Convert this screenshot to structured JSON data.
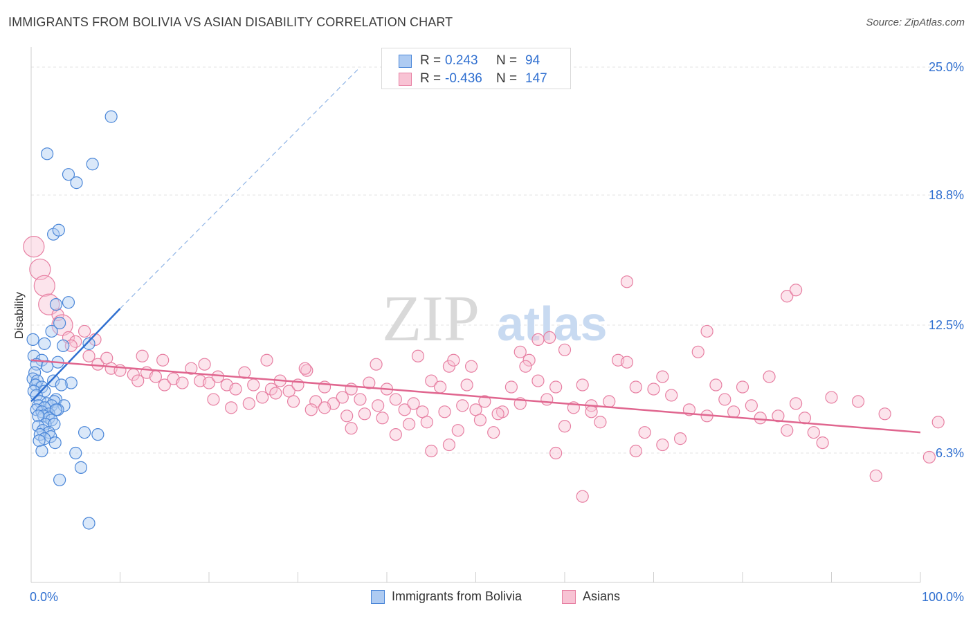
{
  "title": "IMMIGRANTS FROM BOLIVIA VS ASIAN DISABILITY CORRELATION CHART",
  "source": "Source: ZipAtlas.com",
  "watermark": {
    "zip": "ZIP",
    "atlas": "atlas"
  },
  "legend": {
    "r_label": "R =",
    "n_label": "N =",
    "series": [
      {
        "name": "Immigrants from Bolivia",
        "r": "0.243",
        "n": "94",
        "fill": "#aecbf2",
        "stroke": "#4a86d8",
        "text_color": "#2f6fd0"
      },
      {
        "name": "Asians",
        "r": "-0.436",
        "n": "147",
        "fill": "#f8c3d4",
        "stroke": "#e77fa2",
        "text_color": "#2f6fd0"
      }
    ]
  },
  "chart_data": {
    "type": "scatter",
    "title": "IMMIGRANTS FROM BOLIVIA VS ASIAN DISABILITY CORRELATION CHART",
    "xlabel": "",
    "ylabel": "Disability",
    "xlim": [
      0,
      100
    ],
    "ylim": [
      0,
      25
    ],
    "x_tick_labels": [
      "0.0%",
      "100.0%"
    ],
    "y_ticks": [
      6.3,
      12.5,
      18.8,
      25.0
    ],
    "y_tick_labels": [
      "6.3%",
      "12.5%",
      "18.8%",
      "25.0%"
    ],
    "grid": true,
    "series": [
      {
        "name": "Immigrants from Bolivia",
        "color": "#4a86d8",
        "trend": {
          "x": [
            0,
            10
          ],
          "y": [
            8.8,
            13.3
          ],
          "extended_to": [
            37,
            25.0
          ]
        },
        "points": [
          [
            9.0,
            22.6
          ],
          [
            1.8,
            20.8
          ],
          [
            4.2,
            19.8
          ],
          [
            6.9,
            20.3
          ],
          [
            5.1,
            19.4
          ],
          [
            2.5,
            16.9
          ],
          [
            3.1,
            17.1
          ],
          [
            4.2,
            13.6
          ],
          [
            2.8,
            13.5
          ],
          [
            3.2,
            12.6
          ],
          [
            2.3,
            12.2
          ],
          [
            0.2,
            11.8
          ],
          [
            1.5,
            11.6
          ],
          [
            3.6,
            11.5
          ],
          [
            6.5,
            11.6
          ],
          [
            0.3,
            11.0
          ],
          [
            1.2,
            10.8
          ],
          [
            3.0,
            10.7
          ],
          [
            0.6,
            10.6
          ],
          [
            1.8,
            10.5
          ],
          [
            0.4,
            10.2
          ],
          [
            0.2,
            9.9
          ],
          [
            0.7,
            9.8
          ],
          [
            2.5,
            9.8
          ],
          [
            4.5,
            9.7
          ],
          [
            0.5,
            9.6
          ],
          [
            1.2,
            9.5
          ],
          [
            3.4,
            9.6
          ],
          [
            0.3,
            9.3
          ],
          [
            1.5,
            9.3
          ],
          [
            0.6,
            9.1
          ],
          [
            2.8,
            8.9
          ],
          [
            1.0,
            8.8
          ],
          [
            1.8,
            8.7
          ],
          [
            2.6,
            8.8
          ],
          [
            3.7,
            8.6
          ],
          [
            0.8,
            8.6
          ],
          [
            2.3,
            8.6
          ],
          [
            1.5,
            8.5
          ],
          [
            3.0,
            8.4
          ],
          [
            0.6,
            8.4
          ],
          [
            1.2,
            8.3
          ],
          [
            2.0,
            8.2
          ],
          [
            2.8,
            8.4
          ],
          [
            1.4,
            8.1
          ],
          [
            2.0,
            8.0
          ],
          [
            0.8,
            8.1
          ],
          [
            2.3,
            7.9
          ],
          [
            1.6,
            7.7
          ],
          [
            2.6,
            7.7
          ],
          [
            0.8,
            7.6
          ],
          [
            1.3,
            7.4
          ],
          [
            2.0,
            7.3
          ],
          [
            1.0,
            7.2
          ],
          [
            2.2,
            7.1
          ],
          [
            1.5,
            7.0
          ],
          [
            0.9,
            6.9
          ],
          [
            2.7,
            6.8
          ],
          [
            6.0,
            7.3
          ],
          [
            7.5,
            7.2
          ],
          [
            1.2,
            6.4
          ],
          [
            5.0,
            6.3
          ],
          [
            5.6,
            5.6
          ],
          [
            3.2,
            5.0
          ],
          [
            6.5,
            2.9
          ]
        ],
        "large_points": [
          [
            0.1,
            11.8
          ],
          [
            0.3,
            10.2
          ],
          [
            0.6,
            9.6
          ]
        ]
      },
      {
        "name": "Asians",
        "color": "#e77fa2",
        "trend": {
          "x": [
            0,
            100
          ],
          "y": [
            10.8,
            7.3
          ]
        },
        "points": [
          [
            0.3,
            16.3
          ],
          [
            1.0,
            15.2
          ],
          [
            1.5,
            14.4
          ],
          [
            2.0,
            13.5
          ],
          [
            3.0,
            13.0
          ],
          [
            3.5,
            12.5
          ],
          [
            4.2,
            11.9
          ],
          [
            5.0,
            11.7
          ],
          [
            6.0,
            12.2
          ],
          [
            7.2,
            11.8
          ],
          [
            4.5,
            11.5
          ],
          [
            6.5,
            11.0
          ],
          [
            7.5,
            10.6
          ],
          [
            8.5,
            10.9
          ],
          [
            9.0,
            10.4
          ],
          [
            10.0,
            10.3
          ],
          [
            11.5,
            10.1
          ],
          [
            12.0,
            9.8
          ],
          [
            13.0,
            10.2
          ],
          [
            14.0,
            10.0
          ],
          [
            15.0,
            9.6
          ],
          [
            16.0,
            9.9
          ],
          [
            17.0,
            9.7
          ],
          [
            18.0,
            10.4
          ],
          [
            19.0,
            9.8
          ],
          [
            20.0,
            9.7
          ],
          [
            21.0,
            10.0
          ],
          [
            22.0,
            9.6
          ],
          [
            23.0,
            9.4
          ],
          [
            24.0,
            10.2
          ],
          [
            25.0,
            9.6
          ],
          [
            26.0,
            9.0
          ],
          [
            27.0,
            9.4
          ],
          [
            28.0,
            9.8
          ],
          [
            29.0,
            9.3
          ],
          [
            30.0,
            9.6
          ],
          [
            31.0,
            10.3
          ],
          [
            32.0,
            8.8
          ],
          [
            33.0,
            9.5
          ],
          [
            34.0,
            8.7
          ],
          [
            35.0,
            9.0
          ],
          [
            36.0,
            9.4
          ],
          [
            37.0,
            8.9
          ],
          [
            38.0,
            9.7
          ],
          [
            39.0,
            8.6
          ],
          [
            40.0,
            9.4
          ],
          [
            41.0,
            8.9
          ],
          [
            42.0,
            8.4
          ],
          [
            43.0,
            8.7
          ],
          [
            44.0,
            8.3
          ],
          [
            45.0,
            9.8
          ],
          [
            46.0,
            9.5
          ],
          [
            47.0,
            10.5
          ],
          [
            48.0,
            7.4
          ],
          [
            49.0,
            9.6
          ],
          [
            50.0,
            8.4
          ],
          [
            51.0,
            8.8
          ],
          [
            52.0,
            7.3
          ],
          [
            53.0,
            8.3
          ],
          [
            54.0,
            9.5
          ],
          [
            55.0,
            8.7
          ],
          [
            56.0,
            10.8
          ],
          [
            57.0,
            9.8
          ],
          [
            58.0,
            8.9
          ],
          [
            59.0,
            9.5
          ],
          [
            60.0,
            7.6
          ],
          [
            61.0,
            8.5
          ],
          [
            62.0,
            9.6
          ],
          [
            63.0,
            8.6
          ],
          [
            64.0,
            7.8
          ],
          [
            65.0,
            8.8
          ],
          [
            66.0,
            10.8
          ],
          [
            67.0,
            10.7
          ],
          [
            68.0,
            9.5
          ],
          [
            69.0,
            7.3
          ],
          [
            70.0,
            9.4
          ],
          [
            71.0,
            10.0
          ],
          [
            72.0,
            9.1
          ],
          [
            73.0,
            7.0
          ],
          [
            74.0,
            8.4
          ],
          [
            75.0,
            11.2
          ],
          [
            76.0,
            8.1
          ],
          [
            77.0,
            9.6
          ],
          [
            78.0,
            8.9
          ],
          [
            79.0,
            8.3
          ],
          [
            80.0,
            9.5
          ],
          [
            81.0,
            8.6
          ],
          [
            82.0,
            8.0
          ],
          [
            83.0,
            10.0
          ],
          [
            84.0,
            8.1
          ],
          [
            85.0,
            7.4
          ],
          [
            86.0,
            8.7
          ],
          [
            87.0,
            8.0
          ],
          [
            88.0,
            7.3
          ],
          [
            89.0,
            6.8
          ],
          [
            90.0,
            9.0
          ],
          [
            93.0,
            8.8
          ],
          [
            95.0,
            5.2
          ],
          [
            96.0,
            8.2
          ],
          [
            101.0,
            6.1
          ],
          [
            102.0,
            7.8
          ],
          [
            67.0,
            14.6
          ],
          [
            85.0,
            13.9
          ],
          [
            86.0,
            14.2
          ],
          [
            57.0,
            11.8
          ],
          [
            58.3,
            11.9
          ],
          [
            60.0,
            11.3
          ],
          [
            76.0,
            12.2
          ],
          [
            55.0,
            11.2
          ],
          [
            12.5,
            11.0
          ],
          [
            14.8,
            10.8
          ],
          [
            19.5,
            10.6
          ],
          [
            26.5,
            10.8
          ],
          [
            30.8,
            10.4
          ],
          [
            38.8,
            10.6
          ],
          [
            43.5,
            11.0
          ],
          [
            47.5,
            10.8
          ],
          [
            49.5,
            10.5
          ],
          [
            55.6,
            10.5
          ],
          [
            62.0,
            4.2
          ],
          [
            68.0,
            6.4
          ],
          [
            71.0,
            6.7
          ],
          [
            63.0,
            8.3
          ],
          [
            59.0,
            6.3
          ],
          [
            45.0,
            6.4
          ],
          [
            47.0,
            6.7
          ],
          [
            41.0,
            7.2
          ],
          [
            36.0,
            7.5
          ],
          [
            33.0,
            8.5
          ],
          [
            20.5,
            8.9
          ],
          [
            22.5,
            8.5
          ],
          [
            24.5,
            8.7
          ],
          [
            27.5,
            9.2
          ],
          [
            29.5,
            8.8
          ],
          [
            31.5,
            8.4
          ],
          [
            35.5,
            8.1
          ],
          [
            37.5,
            8.2
          ],
          [
            39.5,
            8.0
          ],
          [
            42.5,
            7.7
          ],
          [
            44.5,
            7.8
          ],
          [
            46.5,
            8.3
          ],
          [
            48.5,
            8.6
          ],
          [
            50.5,
            7.9
          ],
          [
            52.5,
            8.2
          ]
        ],
        "large_points": [
          [
            0.3,
            16.3
          ],
          [
            1.0,
            15.2
          ],
          [
            1.5,
            14.4
          ],
          [
            2.0,
            13.5
          ],
          [
            3.5,
            12.5
          ]
        ]
      }
    ]
  }
}
